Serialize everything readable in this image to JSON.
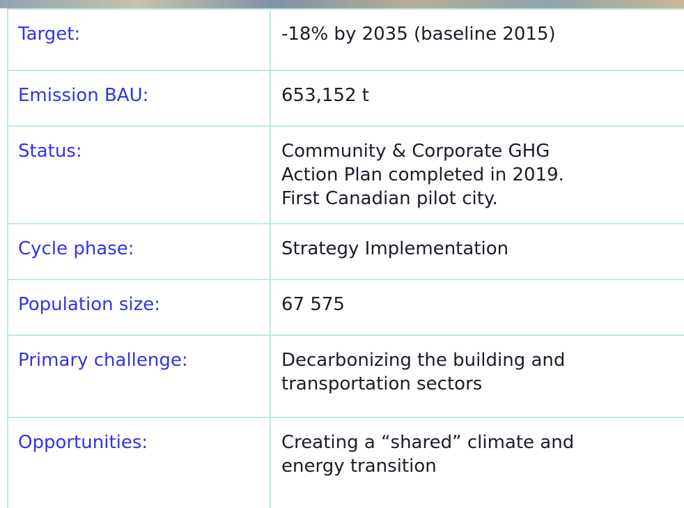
{
  "table": {
    "rows": [
      {
        "label": "Target:",
        "value": [
          "-18% by 2035 (baseline 2015)"
        ]
      },
      {
        "label": "Emission BAU:",
        "value": [
          "653,152 t"
        ]
      },
      {
        "label": "Status:",
        "value": [
          "Community & Corporate GHG",
          "Action Plan completed in 2019.",
          "First Canadian pilot city."
        ]
      },
      {
        "label": "Cycle phase:",
        "value": [
          "Strategy Implementation"
        ]
      },
      {
        "label": "Population size:",
        "value": [
          "67 575"
        ]
      },
      {
        "label": "Primary challenge:",
        "value": [
          "Decarbonizing the building and",
          "transportation sectors"
        ]
      },
      {
        "label": "Opportunities:",
        "value": [
          "Creating a “shared” climate and",
          "energy transition"
        ]
      }
    ]
  }
}
